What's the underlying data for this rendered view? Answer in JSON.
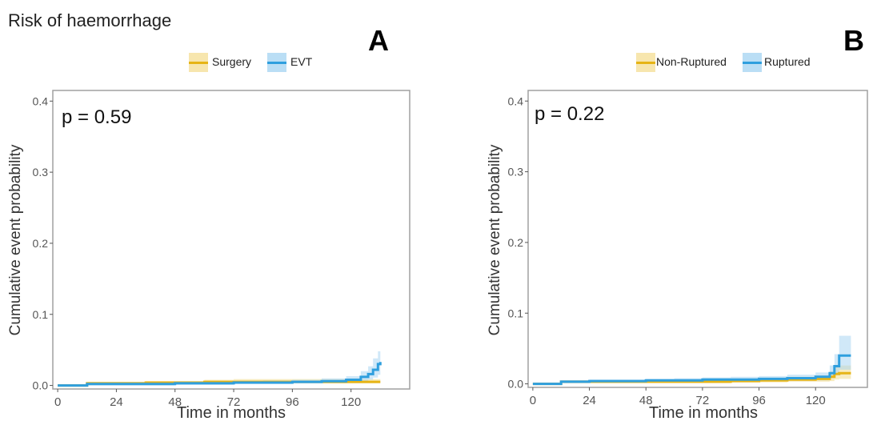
{
  "figure_title": "Risk of haemorrhage",
  "chart_data": [
    {
      "type": "line",
      "panel_label": "A",
      "annotation": "p = 0.59",
      "xlabel": "Time in months",
      "ylabel": "Cumulative event probability",
      "x_ticks": [
        "0",
        "24",
        "48",
        "72",
        "96",
        "120"
      ],
      "y_ticks": [
        "0.0",
        "0.1",
        "0.2",
        "0.3",
        "0.4"
      ],
      "xlim": [
        -2,
        144
      ],
      "ylim": [
        -0.005,
        0.415
      ],
      "legend_position": "top",
      "grid": false,
      "series": [
        {
          "name": "Surgery",
          "color": "#e6b416",
          "band_color": "#f3dc8c",
          "x": [
            0,
            12,
            24,
            36,
            48,
            60,
            72,
            84,
            96,
            108,
            120,
            126,
            132
          ],
          "y": [
            0.0,
            0.003,
            0.003,
            0.004,
            0.004,
            0.005,
            0.005,
            0.005,
            0.005,
            0.005,
            0.005,
            0.005,
            0.005
          ],
          "lower": [
            0.0,
            0.001,
            0.001,
            0.002,
            0.002,
            0.003,
            0.003,
            0.003,
            0.003,
            0.003,
            0.003,
            0.003,
            0.003
          ],
          "upper": [
            0.0,
            0.005,
            0.005,
            0.006,
            0.006,
            0.008,
            0.009,
            0.009,
            0.009,
            0.009,
            0.009,
            0.009,
            0.009
          ]
        },
        {
          "name": "EVT",
          "color": "#2f9fde",
          "band_color": "#a9d6f2",
          "x": [
            0,
            12,
            24,
            36,
            48,
            60,
            72,
            84,
            96,
            108,
            118,
            124,
            127,
            129,
            131,
            132
          ],
          "y": [
            0.0,
            0.002,
            0.002,
            0.002,
            0.003,
            0.003,
            0.004,
            0.004,
            0.005,
            0.006,
            0.008,
            0.012,
            0.016,
            0.022,
            0.03,
            0.033
          ],
          "lower": [
            0.0,
            0.0,
            0.0,
            0.0,
            0.001,
            0.001,
            0.002,
            0.002,
            0.003,
            0.003,
            0.004,
            0.006,
            0.008,
            0.011,
            0.015,
            0.017
          ],
          "upper": [
            0.0,
            0.004,
            0.004,
            0.004,
            0.005,
            0.005,
            0.006,
            0.007,
            0.008,
            0.01,
            0.013,
            0.02,
            0.027,
            0.038,
            0.048,
            0.053
          ]
        }
      ]
    },
    {
      "type": "line",
      "panel_label": "B",
      "annotation": "p = 0.22",
      "xlabel": "Time in months",
      "ylabel": "Cumulative event probability",
      "x_ticks": [
        "0",
        "24",
        "48",
        "72",
        "96",
        "120"
      ],
      "y_ticks": [
        "0.0",
        "0.1",
        "0.2",
        "0.3",
        "0.4"
      ],
      "xlim": [
        -2,
        142
      ],
      "ylim": [
        -0.005,
        0.415
      ],
      "legend_position": "top",
      "grid": false,
      "series": [
        {
          "name": "Non-Ruptured",
          "color": "#e6b416",
          "band_color": "#f3dc8c",
          "x": [
            0,
            12,
            24,
            36,
            48,
            60,
            72,
            84,
            96,
            108,
            120,
            126,
            128,
            130,
            135
          ],
          "y": [
            0.0,
            0.003,
            0.003,
            0.003,
            0.003,
            0.003,
            0.003,
            0.004,
            0.005,
            0.006,
            0.007,
            0.01,
            0.014,
            0.015,
            0.015
          ],
          "lower": [
            0.0,
            0.001,
            0.001,
            0.001,
            0.001,
            0.001,
            0.001,
            0.002,
            0.002,
            0.003,
            0.003,
            0.004,
            0.006,
            0.007,
            0.007
          ],
          "upper": [
            0.0,
            0.005,
            0.005,
            0.005,
            0.005,
            0.005,
            0.006,
            0.007,
            0.008,
            0.01,
            0.012,
            0.018,
            0.024,
            0.026,
            0.026
          ]
        },
        {
          "name": "Ruptured",
          "color": "#2f9fde",
          "band_color": "#a9d6f2",
          "x": [
            0,
            12,
            24,
            36,
            48,
            60,
            72,
            84,
            96,
            108,
            120,
            126,
            128,
            130,
            135
          ],
          "y": [
            0.0,
            0.003,
            0.004,
            0.004,
            0.005,
            0.005,
            0.006,
            0.006,
            0.007,
            0.008,
            0.01,
            0.015,
            0.025,
            0.04,
            0.04
          ],
          "lower": [
            0.0,
            0.001,
            0.002,
            0.002,
            0.003,
            0.003,
            0.003,
            0.003,
            0.004,
            0.004,
            0.005,
            0.008,
            0.013,
            0.02,
            0.02
          ],
          "upper": [
            0.0,
            0.005,
            0.006,
            0.006,
            0.007,
            0.008,
            0.009,
            0.01,
            0.011,
            0.013,
            0.016,
            0.026,
            0.042,
            0.068,
            0.068
          ]
        }
      ]
    }
  ]
}
